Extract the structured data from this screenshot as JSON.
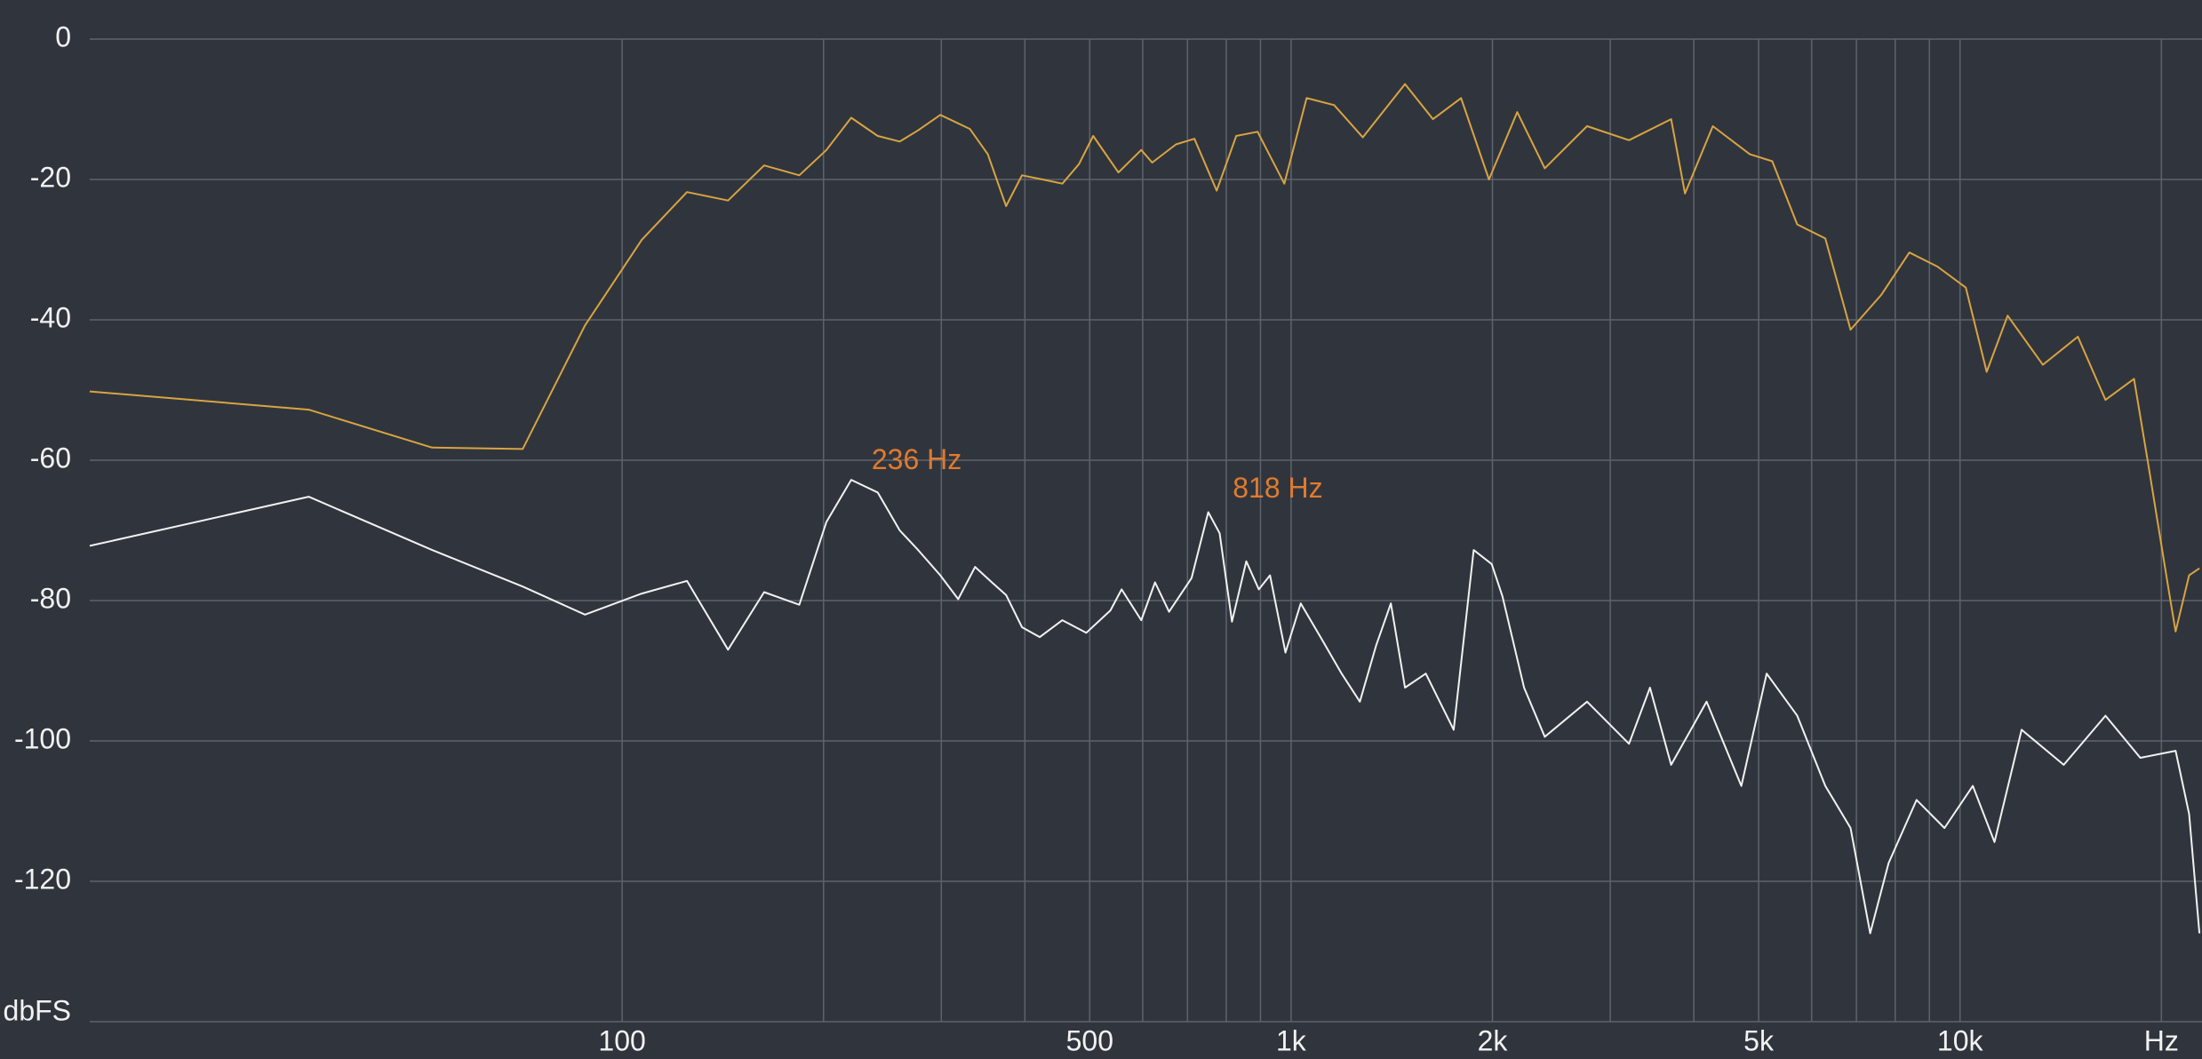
{
  "chart_data": {
    "type": "line",
    "xscale": "log",
    "grid": true,
    "xlim": [
      16,
      23000
    ],
    "ylim": [
      -140,
      0
    ],
    "yticks": [
      0,
      -20,
      -40,
      -60,
      -80,
      -100,
      -120,
      {
        "value": -140,
        "label": "dbFS"
      }
    ],
    "xticks": [
      100,
      500,
      {
        "value": 1000,
        "label": "1k"
      },
      {
        "value": 2000,
        "label": "2k"
      },
      {
        "value": 5000,
        "label": "5k"
      },
      {
        "value": 10000,
        "label": "10k"
      },
      {
        "value": 20000,
        "label": "Hz"
      }
    ],
    "xminor": [
      200,
      300,
      400,
      600,
      700,
      800,
      900,
      3000,
      4000,
      6000,
      7000,
      8000,
      9000
    ],
    "series": [
      {
        "color": "#d9a441",
        "x": [
          16,
          34,
          52,
          71,
          88,
          107,
          125,
          144,
          163,
          184,
          202,
          220,
          241,
          260,
          277,
          299,
          331,
          352,
          375,
          396,
          425,
          455,
          482,
          506,
          552,
          597,
          620,
          673,
          717,
          774,
          828,
          891,
          977,
          1055,
          1160,
          1280,
          1480,
          1630,
          1795,
          1976,
          2178,
          2395,
          2770,
          3200,
          3700,
          3880,
          4270,
          4850,
          5240,
          5710,
          6290,
          6860,
          7630,
          8400,
          9250,
          10200,
          10960,
          11780,
          13300,
          15000,
          16500,
          18200,
          19100,
          20500,
          21000,
          22000,
          22800
        ],
        "values": [
          -50.2,
          -52.8,
          -58.2,
          -58.4,
          -40.8,
          -28.6,
          -21.8,
          -23,
          -18,
          -19.4,
          -15.8,
          -11.2,
          -13.8,
          -14.6,
          -13,
          -10.8,
          -12.8,
          -16.4,
          -23.8,
          -19.4,
          -20,
          -20.6,
          -17.8,
          -13.8,
          -19,
          -15.8,
          -17.6,
          -15,
          -14.2,
          -21.6,
          -13.8,
          -13.2,
          -20.6,
          -8.4,
          -9.4,
          -14,
          -6.4,
          -11.4,
          -8.4,
          -20,
          -10.4,
          -18.4,
          -12.4,
          -14.4,
          -11.4,
          -22,
          -12.4,
          -16.4,
          -17.4,
          -26.4,
          -28.4,
          -41.4,
          -36.4,
          -30.4,
          -32.4,
          -35.4,
          -47.4,
          -39.4,
          -46.4,
          -42.4,
          -51.4,
          -48.4,
          -60.4,
          -78.4,
          -84.4,
          -76.4,
          -75.4
        ]
      },
      {
        "color": "#f2f2f2",
        "x": [
          16,
          34,
          52,
          71,
          88,
          107,
          125,
          144,
          163,
          184,
          202,
          220,
          241,
          260,
          277,
          299,
          318,
          337,
          357,
          375,
          396,
          421,
          455,
          494,
          537,
          558,
          597,
          626,
          657,
          710,
          752,
          782,
          816,
          857,
          895,
          930,
          981,
          1034,
          1110,
          1190,
          1267,
          1340,
          1410,
          1480,
          1590,
          1750,
          1875,
          1995,
          2070,
          2230,
          2395,
          2770,
          3200,
          3440,
          3700,
          4180,
          4710,
          5140,
          5710,
          6290,
          6860,
          7340,
          7820,
          8610,
          9480,
          10450,
          11260,
          12360,
          14290,
          16500,
          18600,
          21000,
          22000,
          22800
        ],
        "values": [
          -72.2,
          -65.2,
          -72.8,
          -78,
          -82,
          -79,
          -77.2,
          -87,
          -78.8,
          -80.6,
          -68.8,
          -62.8,
          -64.6,
          -70,
          -72.8,
          -76.4,
          -79.8,
          -75.2,
          -77.4,
          -79.2,
          -83.8,
          -85.2,
          -82.8,
          -84.6,
          -81.4,
          -78.4,
          -82.8,
          -77.4,
          -81.6,
          -76.8,
          -67.4,
          -70.4,
          -83,
          -74.4,
          -78.4,
          -76.4,
          -87.4,
          -80.4,
          -85.4,
          -90.4,
          -94.4,
          -86.4,
          -80.4,
          -92.4,
          -90.4,
          -98.4,
          -72.8,
          -74.8,
          -79.4,
          -92.4,
          -99.4,
          -94.4,
          -100.4,
          -92.4,
          -103.4,
          -94.4,
          -106.4,
          -90.4,
          -96.4,
          -106.4,
          -112.4,
          -127.4,
          -117.4,
          -108.4,
          -112.4,
          -106.4,
          -114.4,
          -98.4,
          -103.4,
          -96.4,
          -102.4,
          -101.4,
          -110.4,
          -127.4
        ]
      }
    ],
    "annotation_color": "#e07b2e",
    "annotations": [
      {
        "text": "236 Hz",
        "x": 236,
        "y": -63
      },
      {
        "text": "818 Hz",
        "x": 818,
        "y": -67
      }
    ]
  }
}
